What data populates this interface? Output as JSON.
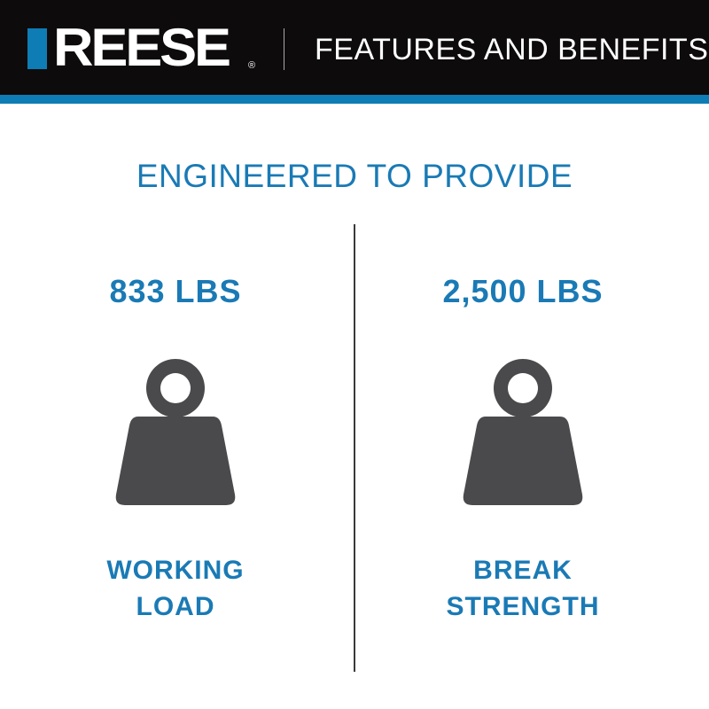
{
  "header": {
    "brand": "REESE",
    "registered_mark": "®",
    "title": "FEATURES AND BENEFITS"
  },
  "subtitle": "ENGINEERED TO PROVIDE",
  "features": [
    {
      "value": "833 LBS",
      "label_line1": "WORKING",
      "label_line2": "LOAD",
      "icon": "weight-icon"
    },
    {
      "value": "2,500 LBS",
      "label_line1": "BREAK",
      "label_line2": "STRENGTH",
      "icon": "weight-icon"
    }
  ],
  "colors": {
    "accent": "#1a7ab5",
    "header_bg": "#0d0b0c",
    "icon": "#4a4a4c"
  }
}
